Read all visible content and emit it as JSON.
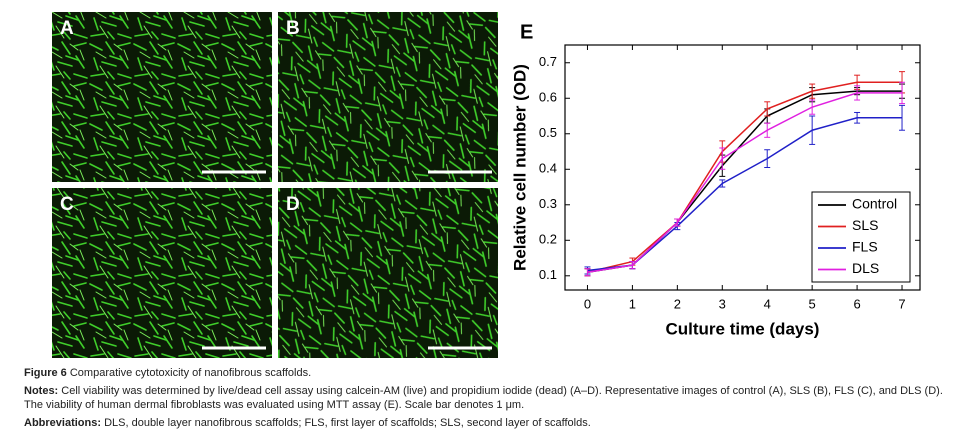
{
  "panels": [
    {
      "label": "A"
    },
    {
      "label": "B"
    },
    {
      "label": "C"
    },
    {
      "label": "D"
    }
  ],
  "chart_label": "E",
  "chart_data": {
    "type": "line",
    "x_label": "Culture time (days)",
    "y_label": "Relative cell number (OD)",
    "x": [
      0,
      1,
      2,
      3,
      4,
      5,
      6,
      7
    ],
    "xlim": [
      -0.5,
      7.4
    ],
    "xticks": [
      0,
      1,
      2,
      3,
      4,
      5,
      6,
      7
    ],
    "ylim": [
      0.06,
      0.75
    ],
    "yticks": [
      0.1,
      0.2,
      0.3,
      0.4,
      0.5,
      0.6,
      0.7
    ],
    "legend": "lower right",
    "series": [
      {
        "name": "Control",
        "color": "#000000",
        "values": [
          0.11,
          0.13,
          0.25,
          0.41,
          0.55,
          0.61,
          0.62,
          0.62
        ],
        "errors": [
          0.01,
          0.01,
          0.01,
          0.03,
          0.02,
          0.02,
          0.01,
          0.02
        ]
      },
      {
        "name": "SLS",
        "color": "#e02020",
        "values": [
          0.11,
          0.14,
          0.25,
          0.45,
          0.57,
          0.62,
          0.645,
          0.645
        ],
        "errors": [
          0.01,
          0.01,
          0.01,
          0.03,
          0.02,
          0.02,
          0.02,
          0.03
        ]
      },
      {
        "name": "FLS",
        "color": "#2020c8",
        "values": [
          0.115,
          0.13,
          0.24,
          0.36,
          0.43,
          0.51,
          0.545,
          0.545
        ],
        "errors": [
          0.01,
          0.01,
          0.01,
          0.01,
          0.025,
          0.04,
          0.015,
          0.035
        ]
      },
      {
        "name": "DLS",
        "color": "#e020e0",
        "values": [
          0.11,
          0.13,
          0.25,
          0.43,
          0.51,
          0.575,
          0.615,
          0.615
        ],
        "errors": [
          0.01,
          0.01,
          0.01,
          0.03,
          0.02,
          0.02,
          0.02,
          0.03
        ]
      }
    ]
  },
  "caption": {
    "label": "Figure 6",
    "title": "Comparative cytotoxicity of nanofibrous scaffolds.",
    "notes_label": "Notes:",
    "notes": "Cell viability was determined by live/dead cell assay using calcein-AM (live) and propidium iodide (dead) (A–D). Representative images of control (A), SLS (B), FLS (C), and DLS (D). The viability of human dermal fibroblasts was evaluated using MTT assay (E). Scale bar denotes 1 μm.",
    "abbreviations_label": "Abbreviations:",
    "abbreviations": "DLS, double layer nanofibrous scaffolds; FLS, first layer of scaffolds; SLS, second layer of scaffolds."
  }
}
